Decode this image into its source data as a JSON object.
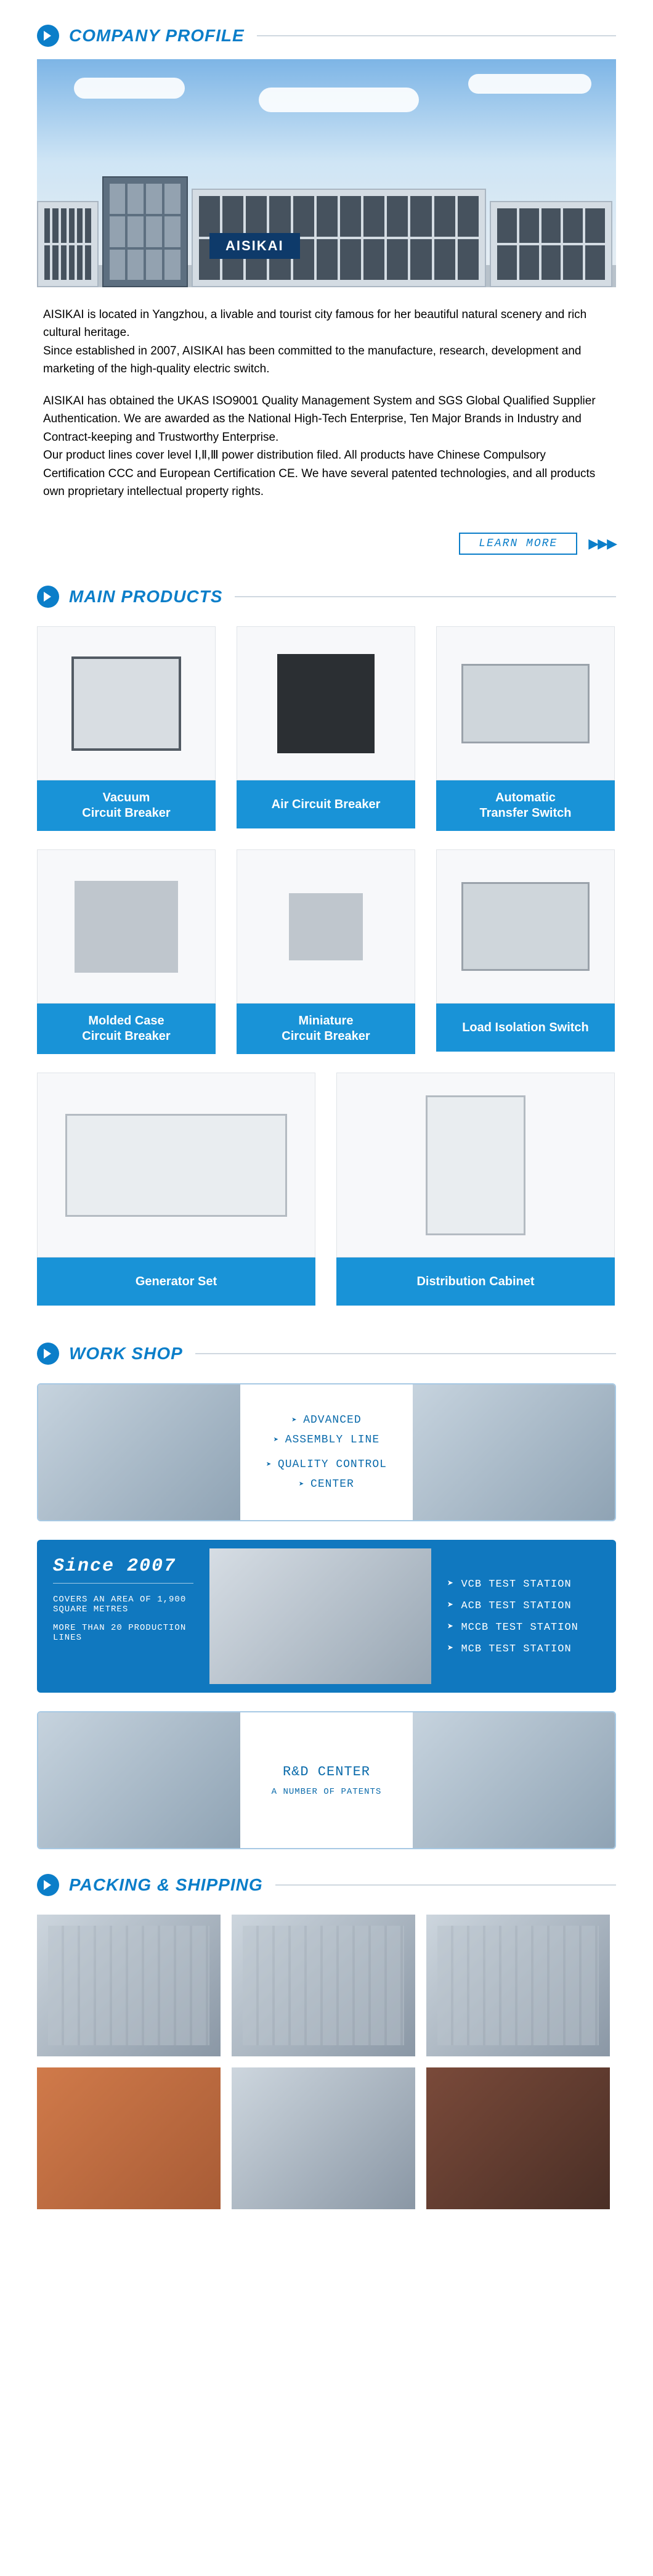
{
  "brand_color": "#0b7ec9",
  "accent_bar": "#1993d7",
  "text_color": "#222222",
  "company_profile": {
    "title": "COMPANY PROFILE",
    "brand_name": "AISIKAI",
    "para1": "AISIKAI is located in Yangzhou, a livable and tourist city famous for her beautiful natural scenery and rich cultural heritage.",
    "para2": "Since established in 2007, AISIKAI has been committed to the manufacture, research, development and marketing of the high-quality electric switch.",
    "para3": "AISIKAI has obtained the UKAS ISO9001 Quality Management System and SGS Global Qualified Supplier Authentication. We are awarded as the National High-Tech Enterprise, Ten Major Brands in Industry and Contract-keeping and Trustworthy Enterprise.",
    "para4": "Our product lines cover level Ⅰ,Ⅱ,Ⅲ power distribution filed. All products have Chinese Compulsory Certification CCC and European Certification CE. We have several patented technologies, and all products own proprietary intellectual property rights.",
    "learn_more": "LEARN MORE"
  },
  "main_products": {
    "title": "MAIN PRODUCTS",
    "items": [
      "Vacuum\nCircuit Breaker",
      "Air Circuit Breaker",
      "Automatic\nTransfer Switch",
      "Molded Case\nCircuit Breaker",
      "Miniature\nCircuit Breaker",
      "Load Isolation Switch",
      "Generator Set",
      "Distribution Cabinet"
    ]
  },
  "work_shop": {
    "title": "WORK SHOP",
    "row1": {
      "line1": "ADVANCED",
      "line2": "ASSEMBLY LINE",
      "line3": "QUALITY CONTROL",
      "line4": "CENTER"
    },
    "row2": {
      "since": "Since 2007",
      "area": "COVERS AN AREA OF 1,900 SQUARE METRES",
      "lines": "MORE THAN 20 PRODUCTION LINES",
      "tests": [
        "VCB TEST STATION",
        "ACB TEST STATION",
        "MCCB TEST STATION",
        "MCB TEST STATION"
      ]
    },
    "row3": {
      "line1": "R&D CENTER",
      "line2": "A NUMBER OF PATENTS"
    }
  },
  "packing": {
    "title": "PACKING & SHIPPING"
  }
}
